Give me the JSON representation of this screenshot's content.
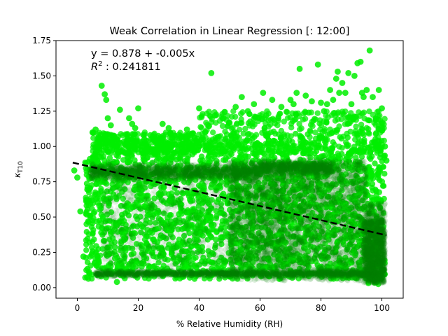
{
  "chart_data": {
    "type": "scatter",
    "title": "Weak Correlation in Linear Regression [: 12:00]",
    "xlabel": "% Relative Humidity (RH)",
    "ylabel_symbol": "κ",
    "ylabel_subscript": "T10",
    "xlim": [
      -7,
      107
    ],
    "ylim": [
      -0.075,
      1.75
    ],
    "xticks": [
      0,
      20,
      40,
      60,
      80,
      100
    ],
    "yticks": [
      0.0,
      0.25,
      0.5,
      0.75,
      1.0,
      1.25,
      1.5,
      1.75
    ],
    "ytick_labels": [
      "0.00",
      "0.25",
      "0.50",
      "0.75",
      "1.00",
      "1.25",
      "1.50",
      "1.75"
    ],
    "grid": false,
    "point_color": "#00ee00",
    "dense_color": "#008000",
    "line_color": "#000000",
    "regression": {
      "intercept": 0.878,
      "slope": -0.005,
      "x_range": [
        -1.5,
        101.5
      ],
      "equation_text": "y = 0.878 + -0.005x",
      "r2_label": "R",
      "r2_sup": "2",
      "r2_value": " : 0.241811"
    },
    "outliers": [
      {
        "x": -1,
        "y": 0.83
      },
      {
        "x": 0,
        "y": 0.78
      },
      {
        "x": 1,
        "y": 0.54
      },
      {
        "x": 2,
        "y": 0.22
      },
      {
        "x": 5,
        "y": 1.1
      },
      {
        "x": 6,
        "y": 1.12
      },
      {
        "x": 8,
        "y": 1.43
      },
      {
        "x": 9,
        "y": 1.37
      },
      {
        "x": 9.5,
        "y": 1.33
      },
      {
        "x": 10,
        "y": 1.2
      },
      {
        "x": 11,
        "y": 1.15
      },
      {
        "x": 14,
        "y": 1.26
      },
      {
        "x": 17,
        "y": 1.2
      },
      {
        "x": 18,
        "y": 1.16
      },
      {
        "x": 19,
        "y": 1.13
      },
      {
        "x": 20,
        "y": 1.27
      },
      {
        "x": 22,
        "y": 1.05
      },
      {
        "x": 28,
        "y": 1.16
      },
      {
        "x": 30,
        "y": 1.13
      },
      {
        "x": 40,
        "y": 1.27
      },
      {
        "x": 44,
        "y": 1.52
      },
      {
        "x": 48,
        "y": 1.2
      },
      {
        "x": 52,
        "y": 1.28
      },
      {
        "x": 54,
        "y": 1.35
      },
      {
        "x": 56,
        "y": 1.25
      },
      {
        "x": 58,
        "y": 1.3
      },
      {
        "x": 61,
        "y": 1.38
      },
      {
        "x": 64,
        "y": 1.33
      },
      {
        "x": 67,
        "y": 1.28
      },
      {
        "x": 70,
        "y": 1.33
      },
      {
        "x": 71,
        "y": 1.3
      },
      {
        "x": 72,
        "y": 1.38
      },
      {
        "x": 73,
        "y": 1.55
      },
      {
        "x": 75,
        "y": 1.36
      },
      {
        "x": 77,
        "y": 1.32
      },
      {
        "x": 79,
        "y": 1.58
      },
      {
        "x": 80,
        "y": 1.31
      },
      {
        "x": 81,
        "y": 1.25
      },
      {
        "x": 83,
        "y": 1.4
      },
      {
        "x": 84,
        "y": 1.33
      },
      {
        "x": 85,
        "y": 1.48
      },
      {
        "x": 85.5,
        "y": 1.53
      },
      {
        "x": 86,
        "y": 1.38
      },
      {
        "x": 87,
        "y": 1.45
      },
      {
        "x": 88,
        "y": 1.38
      },
      {
        "x": 89,
        "y": 1.52
      },
      {
        "x": 90,
        "y": 1.3
      },
      {
        "x": 91,
        "y": 1.5
      },
      {
        "x": 92,
        "y": 1.59
      },
      {
        "x": 93,
        "y": 1.6
      },
      {
        "x": 93.5,
        "y": 1.38
      },
      {
        "x": 94,
        "y": 1.35
      },
      {
        "x": 95,
        "y": 1.4
      },
      {
        "x": 96,
        "y": 1.68
      },
      {
        "x": 97,
        "y": 1.35
      },
      {
        "x": 98,
        "y": 1.2
      },
      {
        "x": 99,
        "y": 1.4
      },
      {
        "x": 100,
        "y": 1.27
      },
      {
        "x": 101,
        "y": 1.0
      },
      {
        "x": 101.5,
        "y": 0.9
      },
      {
        "x": 24,
        "y": 1.08
      },
      {
        "x": 36,
        "y": 1.12
      },
      {
        "x": 42,
        "y": 1.1
      },
      {
        "x": 62,
        "y": 1.22
      },
      {
        "x": 66,
        "y": 1.2
      },
      {
        "x": 76,
        "y": 1.24
      },
      {
        "x": 82,
        "y": 1.3
      },
      {
        "x": 13,
        "y": 0.04
      }
    ]
  }
}
